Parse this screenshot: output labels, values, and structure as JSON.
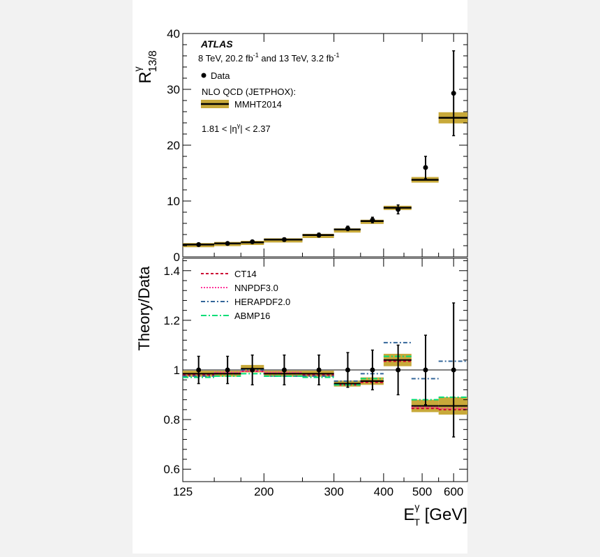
{
  "chart_data": [
    {
      "type": "scatter",
      "panel": "ratio",
      "experiment": "ATLAS",
      "subtitle_parts": [
        "8 TeV, 20.2 fb",
        "-1",
        " and 13 TeV, 3.2 fb",
        "-1"
      ],
      "ylabel_main": "R",
      "ylabel_sup": "γ",
      "ylabel_sub": "13/8",
      "legend": {
        "placement": "top-left",
        "data_label": "Data",
        "theory_header": "NLO QCD (JETPHOX):",
        "theory_label": "MMHT2014"
      },
      "region_parts": [
        "1.81 < |η",
        "γ",
        "| < 2.37"
      ],
      "ylim": [
        0,
        40
      ],
      "yticks": [
        "0",
        "10",
        "20",
        "30",
        "40"
      ],
      "yticks_values": [
        0,
        10,
        20,
        30,
        40
      ],
      "bins": [
        [
          125,
          150
        ],
        [
          150,
          175
        ],
        [
          175,
          200
        ],
        [
          200,
          250
        ],
        [
          250,
          300
        ],
        [
          300,
          350
        ],
        [
          350,
          400
        ],
        [
          400,
          470
        ],
        [
          470,
          550
        ],
        [
          550,
          650
        ]
      ],
      "data_x": [
        137,
        162,
        187,
        225,
        275,
        325,
        375,
        435,
        510,
        600
      ],
      "data_y": [
        2.2,
        2.4,
        2.7,
        3.1,
        3.9,
        5.1,
        6.6,
        8.5,
        16.0,
        29.3
      ],
      "data_err": [
        0.2,
        0.2,
        0.25,
        0.3,
        0.35,
        0.4,
        0.5,
        0.8,
        2.0,
        7.6
      ],
      "theory_y": [
        2.2,
        2.4,
        2.6,
        3.1,
        3.9,
        4.9,
        6.4,
        8.8,
        13.8,
        24.9
      ],
      "theory_band": [
        0.1,
        0.1,
        0.1,
        0.15,
        0.15,
        0.2,
        0.25,
        0.35,
        0.5,
        1.0
      ]
    },
    {
      "type": "line",
      "panel": "theory-over-data",
      "ylabel": "Theory/Data",
      "xlabel_parts": [
        "E",
        "γ",
        "T",
        " [GeV]"
      ],
      "xscale": "log",
      "xlim": [
        125,
        650
      ],
      "xticks": [
        "125",
        "200",
        "300",
        "400",
        "500",
        "600"
      ],
      "xticks_values": [
        125,
        200,
        300,
        400,
        500,
        600
      ],
      "ylim": [
        0.55,
        1.45
      ],
      "yticks": [
        "0.6",
        "0.8",
        "1",
        "1.2",
        "1.4"
      ],
      "yticks_values": [
        0.6,
        0.8,
        1.0,
        1.2,
        1.4
      ],
      "reference_line": 1.0,
      "data_y": [
        1.0,
        1.0,
        1.0,
        1.0,
        1.0,
        1.0,
        1.0,
        1.0,
        1.0,
        1.0
      ],
      "data_err": [
        0.055,
        0.055,
        0.06,
        0.06,
        0.06,
        0.07,
        0.08,
        0.1,
        0.14,
        0.27
      ],
      "mmht_y": [
        0.985,
        0.985,
        1.005,
        0.985,
        0.985,
        0.945,
        0.955,
        1.04,
        0.855,
        0.855
      ],
      "mmht_band": [
        0.012,
        0.012,
        0.015,
        0.012,
        0.012,
        0.012,
        0.015,
        0.025,
        0.025,
        0.035
      ],
      "series": [
        {
          "name": "CT14",
          "color": "#cc0033",
          "values": [
            0.98,
            0.985,
            0.995,
            0.985,
            0.98,
            0.94,
            0.95,
            1.035,
            0.845,
            0.84
          ]
        },
        {
          "name": "NNPDF3.0",
          "color": "#ff3399",
          "values": [
            0.985,
            0.99,
            0.995,
            0.99,
            0.985,
            0.945,
            0.955,
            1.04,
            0.85,
            0.845
          ]
        },
        {
          "name": "HERAPDF2.0",
          "color": "#336699",
          "values": [
            0.975,
            0.985,
            1.0,
            0.975,
            0.975,
            0.955,
            0.985,
            1.11,
            0.965,
            1.035
          ]
        },
        {
          "name": "ABMP16",
          "color": "#00dd77",
          "values": [
            0.97,
            0.975,
            0.985,
            0.975,
            0.97,
            0.94,
            0.965,
            1.055,
            0.88,
            0.89
          ]
        }
      ],
      "band_color": "#c8a93a"
    }
  ]
}
